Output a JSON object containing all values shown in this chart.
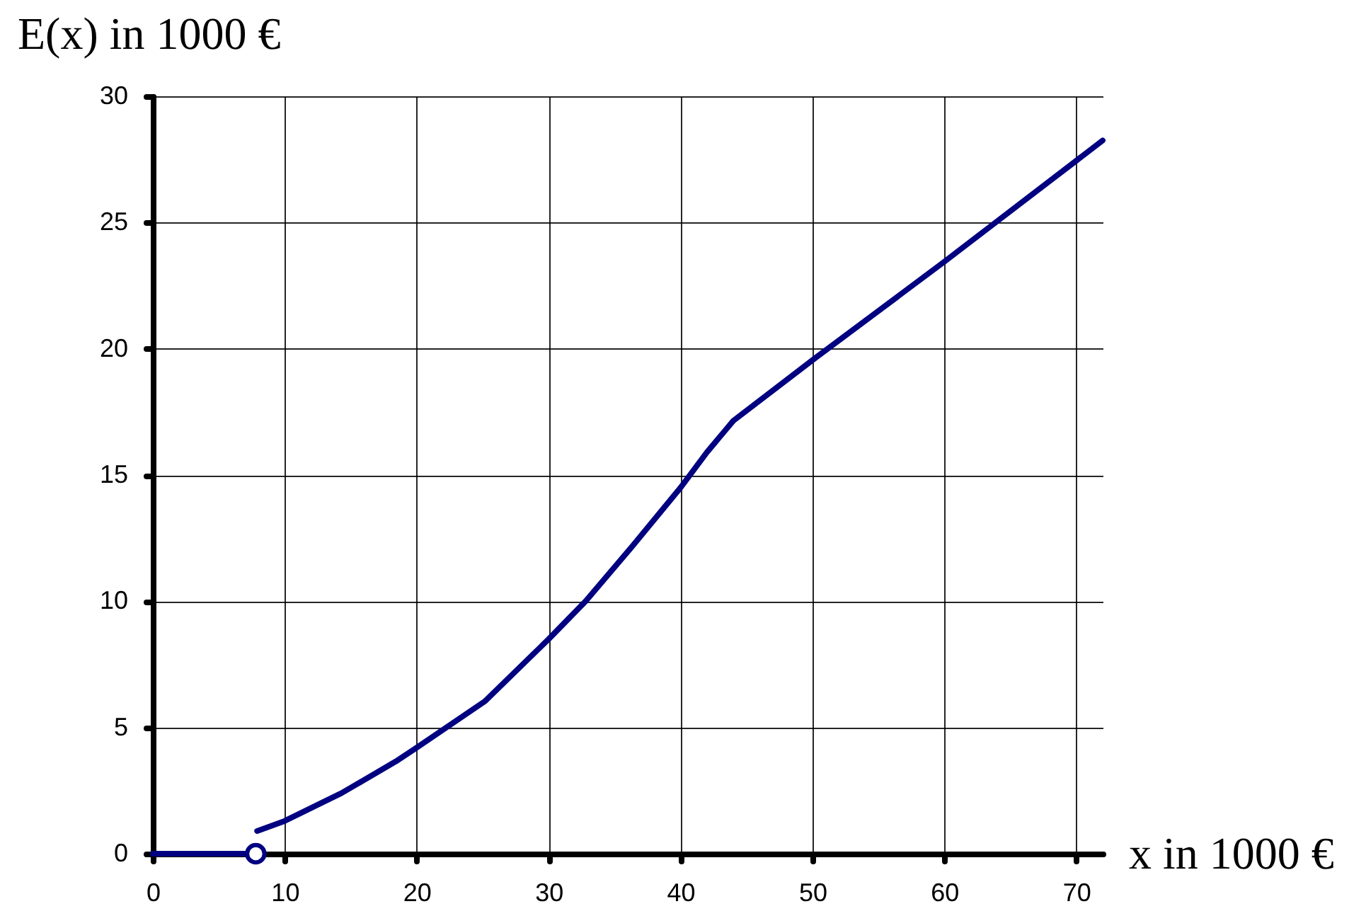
{
  "chart_data": {
    "type": "line",
    "xlabel": "x in 1000 €",
    "ylabel": "E(x) in 1000 €",
    "xlim": [
      0,
      72
    ],
    "ylim": [
      0,
      30
    ],
    "xticks": [
      0,
      10,
      20,
      30,
      40,
      50,
      60,
      70
    ],
    "yticks": [
      0,
      5,
      10,
      15,
      20,
      25,
      30
    ],
    "grid": true,
    "series": [
      {
        "color": "#000080",
        "x": [
          0,
          7.8
        ],
        "values": [
          0,
          0
        ]
      },
      {
        "color": "#000080",
        "x": [
          7.9,
          10,
          14.3,
          18.4,
          20,
          25.2,
          30,
          32.8,
          36.3,
          40,
          42,
          44,
          50,
          60,
          70,
          72
        ],
        "values": [
          0.9,
          1.3,
          2.4,
          3.65,
          4.2,
          6.05,
          8.5,
          10,
          12.15,
          14.5,
          15.9,
          17.15,
          19.55,
          23.45,
          27.45,
          28.25
        ]
      },
      {
        "type": "scatter",
        "color": "#000080",
        "marker": "circle",
        "x": [
          7.8
        ],
        "values": [
          0
        ]
      }
    ]
  }
}
